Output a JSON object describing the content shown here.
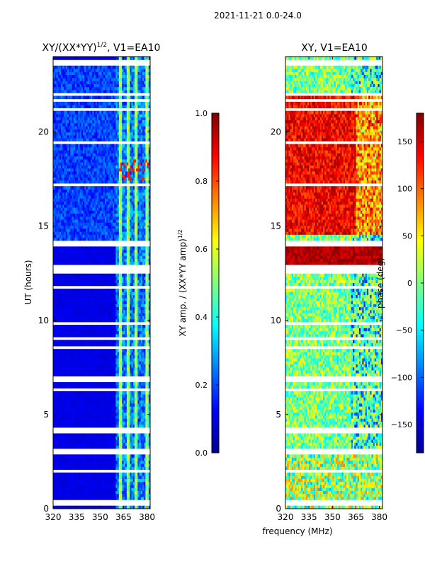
{
  "figure": {
    "suptitle": "2021-11-21 0.0-24.0",
    "shared_xlabel": "frequency (MHz)"
  },
  "chart_data": [
    {
      "type": "heatmap",
      "title": "XY/(XX*YY)",
      "title_superscript": "1/2",
      "title_suffix": ", V1=EA10",
      "xlabel": "",
      "ylabel": "UT (hours)",
      "xlim": [
        320,
        382
      ],
      "ylim": [
        0,
        24
      ],
      "xticks": [
        "320",
        "335",
        "350",
        "365",
        "380"
      ],
      "xtick_values": [
        320,
        335,
        350,
        365,
        380
      ],
      "yticks": [
        "0",
        "5",
        "10",
        "15",
        "20"
      ],
      "ytick_values": [
        0,
        5,
        10,
        15,
        20
      ],
      "colorbar": {
        "label": "XY amp. / (XX*YY amp)",
        "label_superscript": "1/2",
        "range": [
          0.0,
          1.0
        ],
        "ticks": [
          "0.0",
          "0.2",
          "0.4",
          "0.6",
          "0.8",
          "1.0"
        ],
        "tick_values": [
          0.0,
          0.2,
          0.4,
          0.6,
          0.8,
          1.0
        ]
      },
      "colormap": "jet",
      "bright_channels_mhz": [
        363,
        368,
        373,
        380
      ]
    },
    {
      "type": "heatmap",
      "title": "XY, V1=EA10",
      "xlabel": "frequency (MHz)",
      "ylabel": "",
      "xlim": [
        320,
        382
      ],
      "ylim": [
        0,
        24
      ],
      "xticks": [
        "320",
        "335",
        "350",
        "365",
        "380"
      ],
      "xtick_values": [
        320,
        335,
        350,
        365,
        380
      ],
      "yticks": [
        "0",
        "5",
        "10",
        "15",
        "20"
      ],
      "ytick_values": [
        0,
        5,
        10,
        15,
        20
      ],
      "colorbar": {
        "label": "phase (deg)",
        "range": [
          -180,
          180
        ],
        "ticks": [
          "−150",
          "−100",
          "−50",
          "0",
          "50",
          "100",
          "150"
        ],
        "tick_values": [
          -150,
          -100,
          -50,
          0,
          50,
          100,
          150
        ]
      },
      "colormap": "jet"
    }
  ]
}
